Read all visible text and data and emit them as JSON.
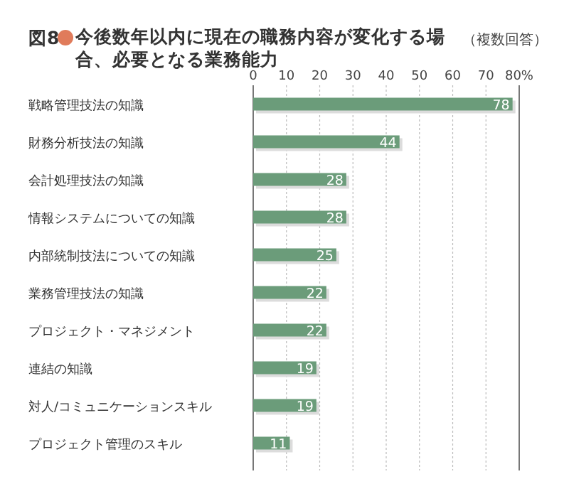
{
  "chart_data": {
    "type": "bar",
    "orientation": "horizontal",
    "title": "今後数年以内に現在の職務内容が変化する場合、必要となる業務能力",
    "annotations": [
      "図8",
      "（複数回答）"
    ],
    "categories": [
      "戦略管理技法の知識",
      "財務分析技法の知識",
      "会計処理技法の知識",
      "情報システムについての知識",
      "内部統制技法についての知識",
      "業務管理技法の知識",
      "プロジェクト・マネジメント",
      "連結の知識",
      "対人/コミュニケーションスキル",
      "プロジェクト管理のスキル"
    ],
    "values": [
      78,
      44,
      28,
      28,
      25,
      22,
      22,
      19,
      19,
      11
    ],
    "color": "#6b9c7a",
    "xlim": [
      0,
      80
    ],
    "xticks": [
      0,
      10,
      20,
      30,
      40,
      50,
      60,
      70,
      {
        "value": 80,
        "label": "80%"
      }
    ],
    "grid": "x",
    "data_labels": true
  }
}
